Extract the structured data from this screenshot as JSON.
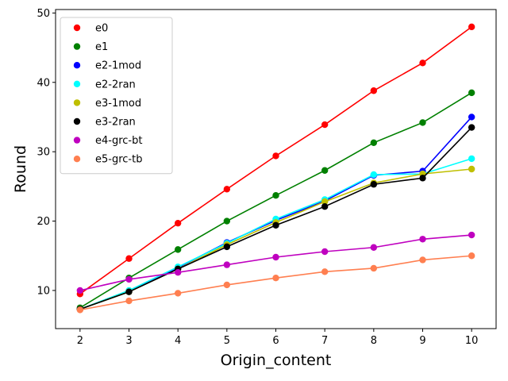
{
  "chart_data": {
    "type": "line",
    "title": "",
    "xlabel": "Origin_content",
    "ylabel": "Round",
    "x": [
      2,
      3,
      4,
      5,
      6,
      7,
      8,
      9,
      10
    ],
    "xlim": [
      1.5,
      10.5
    ],
    "ylim": [
      4.5,
      50.5
    ],
    "xticks": [
      2,
      3,
      4,
      5,
      6,
      7,
      8,
      9,
      10
    ],
    "yticks": [
      10,
      20,
      30,
      40,
      50
    ],
    "grid": false,
    "legend_position": "upper-left",
    "series": [
      {
        "name": "e0",
        "color": "#ff0000",
        "values": [
          9.5,
          14.6,
          19.7,
          24.6,
          29.4,
          33.9,
          38.8,
          42.8,
          48.0
        ]
      },
      {
        "name": "e1",
        "color": "#008000",
        "values": [
          7.5,
          11.8,
          15.9,
          20.0,
          23.7,
          27.3,
          31.3,
          34.2,
          38.5
        ]
      },
      {
        "name": "e2-1mod",
        "color": "#0000ff",
        "values": [
          7.3,
          9.9,
          13.3,
          16.9,
          20.1,
          22.9,
          26.6,
          27.2,
          35.0
        ]
      },
      {
        "name": "e2-2ran",
        "color": "#00ffff",
        "values": [
          7.3,
          10.0,
          13.4,
          16.8,
          20.3,
          23.1,
          26.7,
          26.8,
          29.0
        ]
      },
      {
        "name": "e3-1mod",
        "color": "#bfbf00",
        "values": [
          7.3,
          9.8,
          13.1,
          16.6,
          19.8,
          22.8,
          25.5,
          26.8,
          27.5
        ]
      },
      {
        "name": "e3-2ran",
        "color": "#000000",
        "values": [
          7.3,
          9.8,
          13.1,
          16.3,
          19.4,
          22.1,
          25.3,
          26.2,
          33.5
        ]
      },
      {
        "name": "e4-grc-bt",
        "color": "#bf00bf",
        "values": [
          10.0,
          11.6,
          12.6,
          13.7,
          14.8,
          15.6,
          16.2,
          17.4,
          18.0
        ]
      },
      {
        "name": "e5-grc-tb",
        "color": "#ff7f50",
        "values": [
          7.2,
          8.5,
          9.6,
          10.8,
          11.8,
          12.7,
          13.2,
          14.4,
          15.0
        ]
      }
    ]
  }
}
